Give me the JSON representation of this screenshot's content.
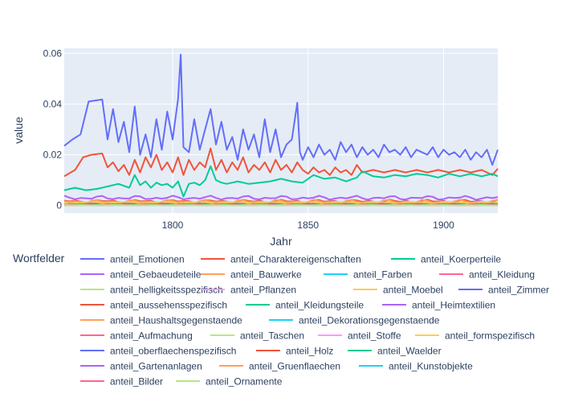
{
  "chart_data": {
    "type": "line",
    "title": "",
    "xlabel": "Jahr",
    "ylabel": "value",
    "xlim": [
      1760,
      1920
    ],
    "ylim": [
      -0.003,
      0.062
    ],
    "x_ticks": [
      1800,
      1850,
      1900
    ],
    "y_ticks": [
      0,
      0.02,
      0.04,
      0.06
    ],
    "y_tick_labels": [
      "0",
      "0.02",
      "0.04",
      "0.06"
    ],
    "grid": true,
    "legend_title": "Wortfelder",
    "legend_position": "bottom",
    "colors": {
      "plot_bg": "#e5ecf6",
      "grid": "#ffffff",
      "text": "#2a3f5f"
    },
    "series": [
      {
        "name": "anteil_Emotionen",
        "color": "#636efa",
        "x": [
          1760,
          1763,
          1766,
          1769,
          1772,
          1774,
          1776,
          1778,
          1780,
          1782,
          1784,
          1786,
          1788,
          1790,
          1792,
          1794,
          1796,
          1798,
          1800,
          1802,
          1803,
          1804,
          1806,
          1808,
          1810,
          1812,
          1814,
          1816,
          1818,
          1820,
          1822,
          1824,
          1826,
          1828,
          1830,
          1832,
          1834,
          1836,
          1838,
          1840,
          1842,
          1844,
          1846,
          1847,
          1848,
          1850,
          1852,
          1854,
          1856,
          1858,
          1860,
          1862,
          1864,
          1866,
          1868,
          1870,
          1872,
          1874,
          1876,
          1878,
          1880,
          1882,
          1884,
          1886,
          1888,
          1890,
          1892,
          1894,
          1896,
          1898,
          1900,
          1902,
          1904,
          1906,
          1908,
          1910,
          1912,
          1914,
          1916,
          1918,
          1920
        ],
        "y": [
          0.0235,
          0.026,
          0.028,
          0.041,
          0.0415,
          0.0418,
          0.026,
          0.038,
          0.025,
          0.033,
          0.021,
          0.039,
          0.02,
          0.028,
          0.019,
          0.034,
          0.022,
          0.037,
          0.026,
          0.042,
          0.0595,
          0.023,
          0.021,
          0.034,
          0.022,
          0.03,
          0.038,
          0.024,
          0.033,
          0.022,
          0.027,
          0.018,
          0.03,
          0.022,
          0.028,
          0.019,
          0.034,
          0.021,
          0.03,
          0.019,
          0.024,
          0.026,
          0.0405,
          0.021,
          0.018,
          0.023,
          0.019,
          0.024,
          0.02,
          0.022,
          0.018,
          0.025,
          0.021,
          0.024,
          0.019,
          0.023,
          0.02,
          0.022,
          0.019,
          0.024,
          0.021,
          0.022,
          0.02,
          0.023,
          0.019,
          0.022,
          0.021,
          0.02,
          0.023,
          0.019,
          0.022,
          0.02,
          0.021,
          0.019,
          0.022,
          0.018,
          0.021,
          0.019,
          0.022,
          0.016,
          0.022
        ]
      },
      {
        "name": "anteil_Charaktereigenschaften",
        "color": "#EF553B",
        "x": [
          1760,
          1764,
          1767,
          1770,
          1774,
          1776,
          1778,
          1780,
          1782,
          1784,
          1786,
          1788,
          1790,
          1792,
          1794,
          1796,
          1798,
          1800,
          1802,
          1804,
          1806,
          1808,
          1810,
          1812,
          1814,
          1816,
          1818,
          1820,
          1822,
          1824,
          1826,
          1828,
          1830,
          1832,
          1834,
          1836,
          1838,
          1840,
          1842,
          1844,
          1846,
          1848,
          1850,
          1852,
          1854,
          1856,
          1858,
          1860,
          1862,
          1864,
          1866,
          1868,
          1870,
          1874,
          1878,
          1882,
          1886,
          1890,
          1894,
          1898,
          1902,
          1906,
          1910,
          1914,
          1918,
          1920
        ],
        "y": [
          0.0115,
          0.014,
          0.019,
          0.02,
          0.0205,
          0.015,
          0.017,
          0.0135,
          0.016,
          0.012,
          0.018,
          0.013,
          0.019,
          0.015,
          0.02,
          0.014,
          0.017,
          0.013,
          0.019,
          0.012,
          0.018,
          0.014,
          0.017,
          0.015,
          0.0225,
          0.014,
          0.018,
          0.013,
          0.017,
          0.014,
          0.019,
          0.013,
          0.016,
          0.014,
          0.017,
          0.013,
          0.018,
          0.014,
          0.016,
          0.013,
          0.017,
          0.014,
          0.0125,
          0.015,
          0.013,
          0.014,
          0.012,
          0.015,
          0.013,
          0.014,
          0.012,
          0.016,
          0.013,
          0.014,
          0.013,
          0.014,
          0.013,
          0.014,
          0.013,
          0.014,
          0.013,
          0.014,
          0.013,
          0.014,
          0.012,
          0.0145
        ]
      },
      {
        "name": "anteil_Koerperteile",
        "color": "#00cc96",
        "x": [
          1760,
          1764,
          1768,
          1772,
          1776,
          1780,
          1784,
          1786,
          1788,
          1790,
          1792,
          1794,
          1796,
          1798,
          1800,
          1802,
          1804,
          1806,
          1808,
          1810,
          1812,
          1814,
          1816,
          1818,
          1820,
          1824,
          1828,
          1832,
          1836,
          1840,
          1844,
          1848,
          1852,
          1856,
          1860,
          1864,
          1868,
          1870,
          1874,
          1878,
          1882,
          1886,
          1890,
          1894,
          1898,
          1902,
          1906,
          1910,
          1914,
          1918,
          1920
        ],
        "y": [
          0.006,
          0.007,
          0.006,
          0.0065,
          0.0075,
          0.0085,
          0.007,
          0.012,
          0.008,
          0.0095,
          0.007,
          0.009,
          0.008,
          0.0085,
          0.007,
          0.0095,
          0.0035,
          0.0085,
          0.009,
          0.008,
          0.01,
          0.0155,
          0.01,
          0.009,
          0.0085,
          0.0095,
          0.0085,
          0.009,
          0.0095,
          0.0105,
          0.0095,
          0.009,
          0.012,
          0.0105,
          0.011,
          0.0095,
          0.011,
          0.0135,
          0.0115,
          0.011,
          0.012,
          0.0115,
          0.0125,
          0.012,
          0.011,
          0.0125,
          0.0115,
          0.0125,
          0.0115,
          0.0125,
          0.0115
        ]
      },
      {
        "name": "anteil_Gebaeudeteile",
        "color": "#ab63fa",
        "level": 0.0012,
        "amp": 0.0007
      },
      {
        "name": "anteil_Bauwerke",
        "color": "#FFA15A",
        "level": 0.0009,
        "amp": 0.0006
      },
      {
        "name": "anteil_Farben",
        "color": "#19d3f3",
        "level": 0.0006,
        "amp": 0.0004
      },
      {
        "name": "anteil_Kleidung",
        "color": "#FF6692",
        "level": 0.0008,
        "amp": 0.0005
      },
      {
        "name": "anteil_helligkeitsspezifisch",
        "color": "#B6E880",
        "level": 0.0007,
        "amp": 0.0004
      },
      {
        "name": "anteil_Pflanzen",
        "color": "#FF97FF",
        "level": 0.0005,
        "amp": 0.0003
      },
      {
        "name": "anteil_Moebel",
        "color": "#FECB52",
        "level": 0.0004,
        "amp": 0.0003
      },
      {
        "name": "anteil_Zimmer",
        "color": "#636efa",
        "level": 0.0003,
        "amp": 0.0002
      },
      {
        "name": "anteil_aussehensspezifisch",
        "color": "#EF553B",
        "level": 0.0016,
        "amp": 0.0008
      },
      {
        "name": "anteil_Kleidungsteile",
        "color": "#00cc96",
        "level": 0.0005,
        "amp": 0.0003
      },
      {
        "name": "anteil_Heimtextilien",
        "color": "#ab63fa",
        "level": 0.003,
        "amp": 0.0009
      },
      {
        "name": "anteil_Haushaltsgegenstaende",
        "color": "#FFA15A",
        "level": 0.0015,
        "amp": 0.0008
      },
      {
        "name": "anteil_Dekorationsgegenstaende",
        "color": "#19d3f3",
        "level": 0.0002,
        "amp": 0.0001
      },
      {
        "name": "anteil_Aufmachung",
        "color": "#FF6692",
        "level": 0.0002,
        "amp": 0.0001
      },
      {
        "name": "anteil_Taschen",
        "color": "#B6E880",
        "level": 0.0001,
        "amp": 0.0001
      },
      {
        "name": "anteil_Stoffe",
        "color": "#FF97FF",
        "level": 0.0003,
        "amp": 0.0002
      },
      {
        "name": "anteil_formspezifisch",
        "color": "#FECB52",
        "level": 0.0011,
        "amp": 0.0006
      },
      {
        "name": "anteil_oberflaechenspezifisch",
        "color": "#636efa",
        "level": 0.0005,
        "amp": 0.0003
      },
      {
        "name": "anteil_Holz",
        "color": "#EF553B",
        "level": 0.0003,
        "amp": 0.0002
      },
      {
        "name": "anteil_Waelder",
        "color": "#00cc96",
        "level": 0.0004,
        "amp": 0.0002
      },
      {
        "name": "anteil_Gartenanlagen",
        "color": "#ab63fa",
        "level": 0.0002,
        "amp": 0.0001
      },
      {
        "name": "anteil_Gruenflaechen",
        "color": "#FFA15A",
        "level": 0.0001,
        "amp": 0.0001
      },
      {
        "name": "anteil_Kunstobjekte",
        "color": "#19d3f3",
        "level": 0.0002,
        "amp": 0.0001
      },
      {
        "name": "anteil_Bilder",
        "color": "#FF6692",
        "level": 0.0003,
        "amp": 0.0002
      },
      {
        "name": "anteil_Ornamente",
        "color": "#B6E880",
        "level": 0.0001,
        "amp": 0.0001
      }
    ]
  }
}
